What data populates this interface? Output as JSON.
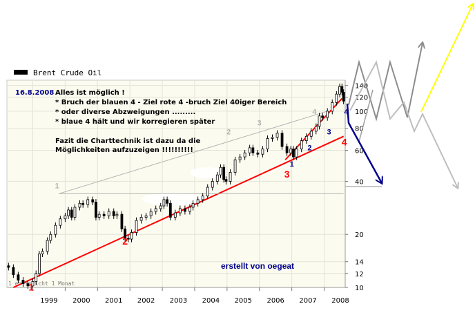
{
  "legend": {
    "label": "Brent Crude Oil",
    "swatch_color": "#000000"
  },
  "date": "16.8.2008",
  "notes": [
    "Alles ist möglich !",
    "* Bruch der blauen 4 - Ziel rote 4 -bruch  Ziel 40iger Bereich",
    "* oder diverse Abzweigungen .........",
    "* blaue 4 hält und wir korregieren später",
    "Fazit die Charttechnik ist dazu da die",
    "Möglichkeiten aufzuzeigen !!!!!!!!!!"
  ],
  "signature": "erstellt von oegeat",
  "footer_note": "1 entspricht 1 Monat",
  "chart_data": {
    "type": "candlestick",
    "title": "Brent Crude Oil",
    "x_ticks": [
      "1999",
      "2000",
      "2001",
      "2002",
      "2003",
      "2004",
      "2005",
      "2006",
      "2007",
      "2008"
    ],
    "y_ticks": [
      10,
      12,
      14,
      20,
      40,
      60,
      80,
      100,
      120,
      140
    ],
    "y_scale": "log",
    "ylim": [
      10,
      150
    ],
    "xlim": [
      1998.2,
      2008.65
    ],
    "grid": true,
    "plot_background": "#fbfbf0",
    "price_color": "#000000",
    "monthly_close": [
      [
        1998.25,
        13.0
      ],
      [
        1998.4,
        11.8
      ],
      [
        1998.55,
        11.0
      ],
      [
        1998.7,
        10.5
      ],
      [
        1998.85,
        10.2
      ],
      [
        1999.0,
        10.8
      ],
      [
        1999.1,
        12.0
      ],
      [
        1999.2,
        15.5
      ],
      [
        1999.3,
        16.0
      ],
      [
        1999.45,
        18.5
      ],
      [
        1999.55,
        20.0
      ],
      [
        1999.7,
        22.5
      ],
      [
        1999.85,
        24.5
      ],
      [
        2000.0,
        25.5
      ],
      [
        2000.1,
        27.5
      ],
      [
        2000.2,
        25.0
      ],
      [
        2000.3,
        28.5
      ],
      [
        2000.45,
        30.0
      ],
      [
        2000.55,
        29.5
      ],
      [
        2000.7,
        31.5
      ],
      [
        2000.85,
        30.5
      ],
      [
        2000.95,
        25.0
      ],
      [
        2001.05,
        26.0
      ],
      [
        2001.2,
        25.5
      ],
      [
        2001.35,
        27.0
      ],
      [
        2001.5,
        25.5
      ],
      [
        2001.6,
        26.0
      ],
      [
        2001.75,
        21.5
      ],
      [
        2001.85,
        19.0
      ],
      [
        2001.95,
        18.8
      ],
      [
        2002.05,
        20.5
      ],
      [
        2002.2,
        24.0
      ],
      [
        2002.35,
        25.0
      ],
      [
        2002.5,
        25.5
      ],
      [
        2002.65,
        27.0
      ],
      [
        2002.8,
        28.0
      ],
      [
        2002.95,
        29.0
      ],
      [
        2003.05,
        31.5
      ],
      [
        2003.15,
        30.0
      ],
      [
        2003.25,
        25.0
      ],
      [
        2003.4,
        26.5
      ],
      [
        2003.55,
        28.0
      ],
      [
        2003.7,
        27.0
      ],
      [
        2003.85,
        28.5
      ],
      [
        2003.95,
        30.0
      ],
      [
        2004.1,
        31.5
      ],
      [
        2004.25,
        33.0
      ],
      [
        2004.4,
        37.0
      ],
      [
        2004.55,
        40.0
      ],
      [
        2004.7,
        43.5
      ],
      [
        2004.8,
        48.0
      ],
      [
        2004.9,
        41.0
      ],
      [
        2004.97,
        40.0
      ],
      [
        2005.1,
        45.0
      ],
      [
        2005.25,
        53.0
      ],
      [
        2005.4,
        55.0
      ],
      [
        2005.55,
        58.0
      ],
      [
        2005.7,
        62.0
      ],
      [
        2005.8,
        58.0
      ],
      [
        2005.95,
        57.0
      ],
      [
        2006.1,
        61.0
      ],
      [
        2006.25,
        70.0
      ],
      [
        2006.4,
        71.0
      ],
      [
        2006.55,
        75.0
      ],
      [
        2006.7,
        63.0
      ],
      [
        2006.85,
        58.0
      ],
      [
        2006.97,
        61.0
      ],
      [
        2007.05,
        55.0
      ],
      [
        2007.15,
        61.0
      ],
      [
        2007.3,
        68.0
      ],
      [
        2007.45,
        72.0
      ],
      [
        2007.6,
        77.0
      ],
      [
        2007.75,
        82.0
      ],
      [
        2007.85,
        94.0
      ],
      [
        2007.95,
        92.0
      ],
      [
        2008.1,
        100.0
      ],
      [
        2008.25,
        112.0
      ],
      [
        2008.38,
        125.0
      ],
      [
        2008.48,
        138.0
      ],
      [
        2008.55,
        128.0
      ],
      [
        2008.6,
        114.0
      ]
    ],
    "trendlines": [
      {
        "name": "red-support",
        "color": "#ff0000",
        "points": [
          [
            1998.4,
            10.0
          ],
          [
            2008.6,
            72.0
          ]
        ]
      },
      {
        "name": "grey-resistance",
        "color": "#b4b4b4",
        "points": [
          [
            1999.8,
            34.0
          ],
          [
            2008.1,
            100.0
          ]
        ]
      },
      {
        "name": "grey-horizontal",
        "color": "#b4b4b4",
        "points": [
          [
            1999.8,
            34.0
          ],
          [
            2008.6,
            34.0
          ]
        ]
      },
      {
        "name": "red-inner",
        "color": "#ff0000",
        "points": [
          [
            2006.8,
            53.0
          ],
          [
            2008.55,
            118.0
          ]
        ]
      }
    ],
    "wave_labels": [
      {
        "text": "1",
        "x": 1998.95,
        "y": 9.6,
        "color": "#ff0000",
        "size": "big"
      },
      {
        "text": "2",
        "x": 2001.85,
        "y": 17.5,
        "color": "#ff0000",
        "size": "big"
      },
      {
        "text": "3",
        "x": 2006.85,
        "y": 42.0,
        "color": "#ff0000",
        "size": "big"
      },
      {
        "text": "4",
        "x": 2008.62,
        "y": 64.0,
        "color": "#ff0000",
        "size": "big"
      },
      {
        "text": "1",
        "x": 1999.75,
        "y": 36.5,
        "color": "#b4b4b4",
        "size": "small"
      },
      {
        "text": "2",
        "x": 2005.05,
        "y": 74.0,
        "color": "#b4b4b4",
        "size": "small"
      },
      {
        "text": "3",
        "x": 2006.0,
        "y": 83.0,
        "color": "#b4b4b4",
        "size": "small"
      },
      {
        "text": "4",
        "x": 2007.7,
        "y": 96.0,
        "color": "#b4b4b4",
        "size": "small"
      },
      {
        "text": "1",
        "x": 2007.0,
        "y": 48.5,
        "color": "#00008b",
        "size": "small"
      },
      {
        "text": "2",
        "x": 2007.55,
        "y": 60.0,
        "color": "#00008b",
        "size": "small"
      },
      {
        "text": "3",
        "x": 2008.15,
        "y": 74.0,
        "color": "#00008b",
        "size": "small"
      },
      {
        "text": "4",
        "x": 2008.68,
        "y": 96.0,
        "color": "#00008b",
        "size": "small"
      }
    ],
    "projection_colors": {
      "navy": "#00008b",
      "dark_grey": "#8c8c8c",
      "mid_grey": "#a0a0a0",
      "light_grey": "#bebebe",
      "yellow": "#ffff00"
    }
  }
}
